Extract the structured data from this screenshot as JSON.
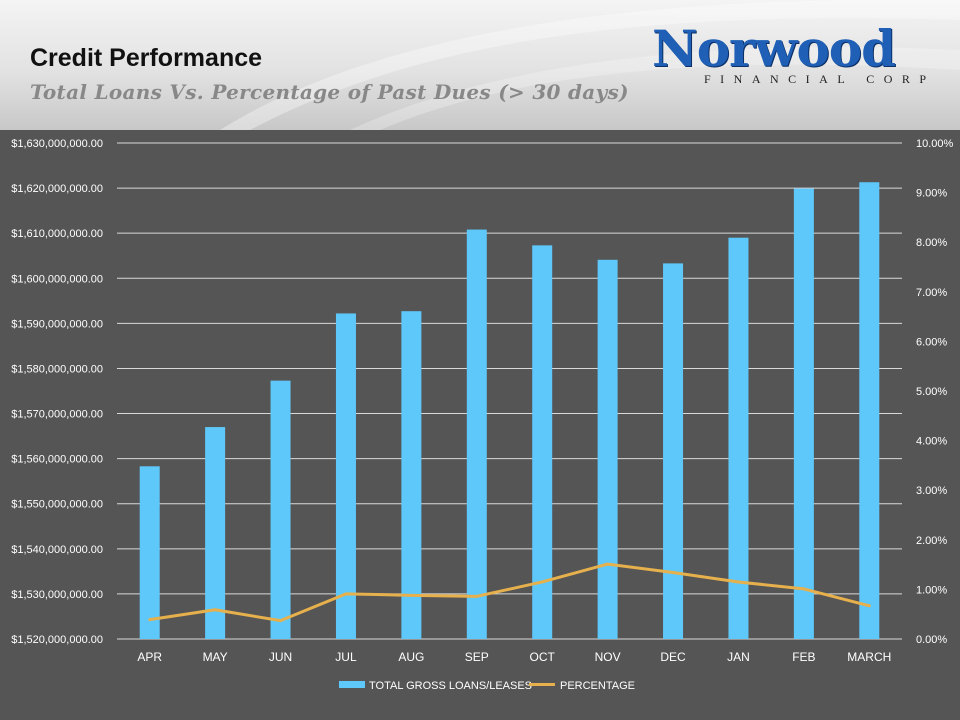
{
  "header": {
    "title": "Credit Performance",
    "subtitle": "Total Loans Vs. Percentage of Past Dues (> 30 days)"
  },
  "logo": {
    "wordmark": "Norwood",
    "tagline": "FINANCIAL CORP",
    "color": "#1f5fb5"
  },
  "colors": {
    "background": "#555555",
    "bars": "#5ec8fa",
    "line": "#e6b04d",
    "grid": "#d9d9d9"
  },
  "chart_data": {
    "type": "bar",
    "title": "Total Loans Vs. Percentage of Past Dues (> 30 days)",
    "categories": [
      "APR",
      "MAY",
      "JUN",
      "JUL",
      "AUG",
      "SEP",
      "OCT",
      "NOV",
      "DEC",
      "JAN",
      "FEB",
      "MARCH"
    ],
    "series": [
      {
        "name": "TOTAL GROSS LOANS/LEASES",
        "kind": "bar",
        "axis": "left",
        "values": [
          1558300000,
          1567000000,
          1577300000,
          1592200000,
          1592700000,
          1610800000,
          1607300000,
          1604100000,
          1603300000,
          1609000000,
          1619900000,
          1621300000
        ]
      },
      {
        "name": "PERCENTAGE",
        "kind": "line",
        "axis": "right",
        "values": [
          0.0039,
          0.0059,
          0.0037,
          0.0091,
          0.0088,
          0.0086,
          0.0115,
          0.0151,
          0.0134,
          0.0115,
          0.0101,
          0.0067
        ]
      }
    ],
    "y_left": {
      "min": 1520000000,
      "max": 1630000000,
      "step": 10000000,
      "tick_labels": [
        "$1,520,000,000.00",
        "$1,530,000,000.00",
        "$1,540,000,000.00",
        "$1,550,000,000.00",
        "$1,560,000,000.00",
        "$1,570,000,000.00",
        "$1,580,000,000.00",
        "$1,590,000,000.00",
        "$1,600,000,000.00",
        "$1,610,000,000.00",
        "$1,620,000,000.00",
        "$1,630,000,000.00"
      ]
    },
    "y_right": {
      "min": 0,
      "max": 0.1,
      "step": 0.01,
      "tick_labels": [
        "0.00%",
        "1.00%",
        "2.00%",
        "3.00%",
        "4.00%",
        "5.00%",
        "6.00%",
        "7.00%",
        "8.00%",
        "9.00%",
        "10.00%"
      ]
    },
    "grid": true,
    "legend_position": "bottom",
    "legend": [
      "TOTAL GROSS LOANS/LEASES",
      "PERCENTAGE"
    ]
  }
}
